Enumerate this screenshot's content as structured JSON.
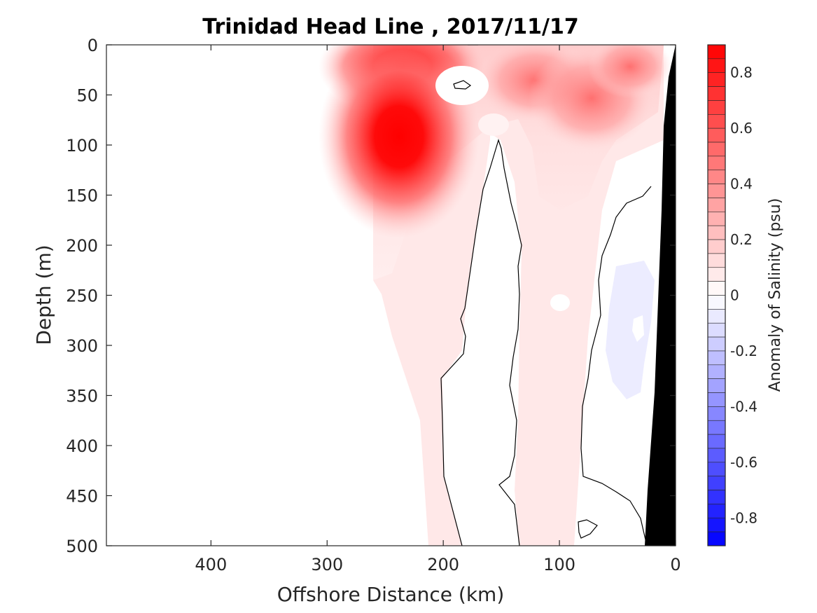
{
  "chart_data": {
    "type": "heatmap",
    "title": "Trinidad Head Line , 2017/11/17",
    "xlabel": "Offshore Distance (km)",
    "ylabel": "Depth (m)",
    "colorbar_label": "Anomaly of Salinity (psu)",
    "xlim": [
      490,
      0
    ],
    "ylim": [
      500,
      0
    ],
    "x_ticks": [
      "400",
      "300",
      "200",
      "100",
      "0"
    ],
    "y_ticks": [
      "0",
      "50",
      "100",
      "150",
      "200",
      "250",
      "300",
      "350",
      "400",
      "450",
      "500"
    ],
    "colorbar_ticks": [
      "0.8",
      "0.6",
      "0.4",
      "0.2",
      "0",
      "-0.2",
      "-0.4",
      "-0.6",
      "-0.8"
    ],
    "color_range": [
      -0.9,
      0.9
    ],
    "colormap": {
      "negative": "#0000ff",
      "zero": "#ffffff",
      "positive": "#ff0000"
    },
    "data_extent_offshore_km": 260,
    "bathymetry_color": "#000000",
    "features": [
      {
        "name": "surface maximum",
        "x": 240,
        "y": 20,
        "value": 0.85
      },
      {
        "name": "subsurface maximum",
        "x": 240,
        "y": 90,
        "value": 0.9
      },
      {
        "name": "upper band maximum",
        "x": 120,
        "y": 30,
        "value": 0.45
      },
      {
        "name": "small minimum near surface",
        "x": 185,
        "y": 40,
        "value": -0.05
      },
      {
        "name": "nearshore negative patch",
        "x": 45,
        "y": 300,
        "value": -0.07
      }
    ]
  }
}
